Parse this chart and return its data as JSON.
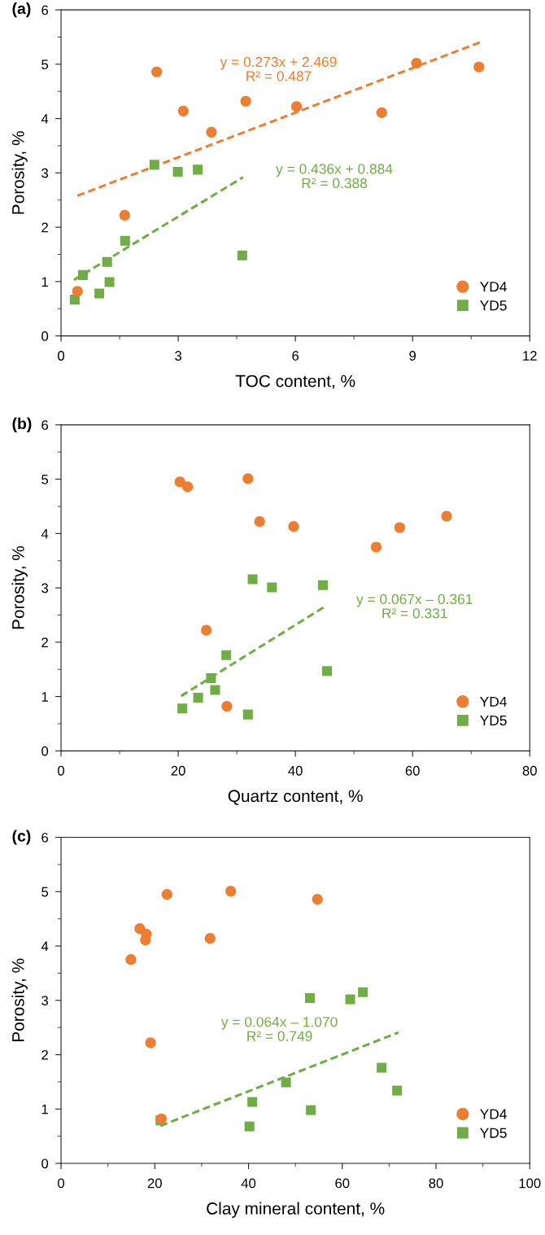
{
  "chart_data": [
    {
      "type": "scatter",
      "title": "(a)",
      "xlabel": "TOC content, %",
      "ylabel": "Porosity, %",
      "xlim": [
        0,
        12
      ],
      "xticks": [
        0,
        3,
        6,
        9,
        12
      ],
      "ylim": [
        0,
        6
      ],
      "yticks": [
        0,
        1,
        2,
        3,
        4,
        5,
        6
      ],
      "legend": "bottom right",
      "grid": false,
      "series": [
        {
          "name": "YD4",
          "color": "#ed7d31",
          "marker": "circle",
          "x": [
            0.42,
            2.45,
            1.63,
            3.13,
            3.85,
            4.73,
            6.03,
            8.21,
            9.1,
            10.7
          ],
          "values": [
            0.82,
            4.86,
            2.22,
            4.14,
            3.75,
            4.32,
            4.22,
            4.11,
            5.02,
            4.95
          ]
        },
        {
          "name": "YD5",
          "color": "#70ad47",
          "marker": "square",
          "x": [
            0.35,
            0.56,
            0.98,
            1.18,
            1.24,
            1.64,
            2.39,
            2.99,
            3.5,
            4.64
          ],
          "values": [
            0.67,
            1.12,
            0.78,
            1.36,
            0.99,
            1.75,
            3.15,
            3.02,
            3.06,
            1.48
          ]
        },
        {
          "type": "line",
          "name": "y = 0.273x + 2.469\nR² = 0.487",
          "color": "#ed7d31",
          "line_style": "dashed",
          "x": [
            0.42,
            10.72
          ],
          "values": [
            2.58,
            5.4
          ]
        },
        {
          "type": "line",
          "name": "y = 0.436x + 0.884\nR² = 0.388",
          "color": "#70ad47",
          "line_style": "dashed",
          "x": [
            0.33,
            4.66
          ],
          "values": [
            1.03,
            2.92
          ]
        }
      ]
    },
    {
      "type": "scatter",
      "title": "(b)",
      "xlabel": "Quartz content, %",
      "ylabel": "Porosity, %",
      "xlim": [
        0,
        80
      ],
      "xticks": [
        0,
        20,
        40,
        60,
        80
      ],
      "ylim": [
        0,
        6
      ],
      "yticks": [
        0,
        1,
        2,
        3,
        4,
        5,
        6
      ],
      "legend": "bottom right",
      "grid": false,
      "series": [
        {
          "name": "YD4",
          "color": "#ed7d31",
          "marker": "circle",
          "x": [
            20.3,
            21.6,
            31.9,
            33.9,
            39.7,
            53.8,
            57.8,
            65.8,
            24.8,
            28.3
          ],
          "values": [
            4.95,
            4.86,
            5.01,
            4.22,
            4.13,
            3.75,
            4.11,
            4.32,
            2.22,
            0.82
          ]
        },
        {
          "name": "YD5",
          "color": "#70ad47",
          "marker": "square",
          "x": [
            32.7,
            36.0,
            44.7,
            28.2,
            25.6,
            26.3,
            23.4,
            20.7,
            31.9,
            45.4
          ],
          "values": [
            3.16,
            3.01,
            3.05,
            1.76,
            1.34,
            1.12,
            0.98,
            0.78,
            0.67,
            1.47
          ]
        },
        {
          "type": "line",
          "name": "y = 0.067x – 0.361\nR² = 0.331",
          "color": "#70ad47",
          "line_style": "dashed",
          "x": [
            20.5,
            44.8
          ],
          "values": [
            1.01,
            2.64
          ]
        }
      ]
    },
    {
      "type": "scatter",
      "title": "(c)",
      "xlabel": "Clay mineral content, %",
      "ylabel": "Porosity, %",
      "xlim": [
        0,
        100
      ],
      "xticks": [
        0,
        20,
        40,
        60,
        80,
        100
      ],
      "ylim": [
        0,
        6
      ],
      "yticks": [
        0,
        1,
        2,
        3,
        4,
        5,
        6
      ],
      "legend": "bottom right",
      "grid": false,
      "series": [
        {
          "name": "YD4",
          "color": "#ed7d31",
          "marker": "circle",
          "x": [
            22.6,
            36.2,
            54.7,
            16.8,
            18.2,
            18.0,
            31.8,
            14.9,
            19.1,
            21.4
          ],
          "values": [
            4.95,
            5.01,
            4.86,
            4.32,
            4.22,
            4.11,
            4.14,
            3.75,
            2.22,
            0.82
          ]
        },
        {
          "name": "YD5",
          "color": "#70ad47",
          "marker": "square",
          "x": [
            53.1,
            61.7,
            64.4,
            68.4,
            71.7,
            48.0,
            40.8,
            53.3,
            40.2,
            21.2
          ],
          "values": [
            3.04,
            3.02,
            3.15,
            1.76,
            1.34,
            1.49,
            1.13,
            0.98,
            0.68,
            0.79
          ]
        },
        {
          "type": "line",
          "name": "y = 0.064x – 1.070\nR² = 0.749",
          "color": "#70ad47",
          "line_style": "dashed",
          "x": [
            21.2,
            72.0
          ],
          "values": [
            0.69,
            2.41
          ]
        }
      ]
    }
  ]
}
